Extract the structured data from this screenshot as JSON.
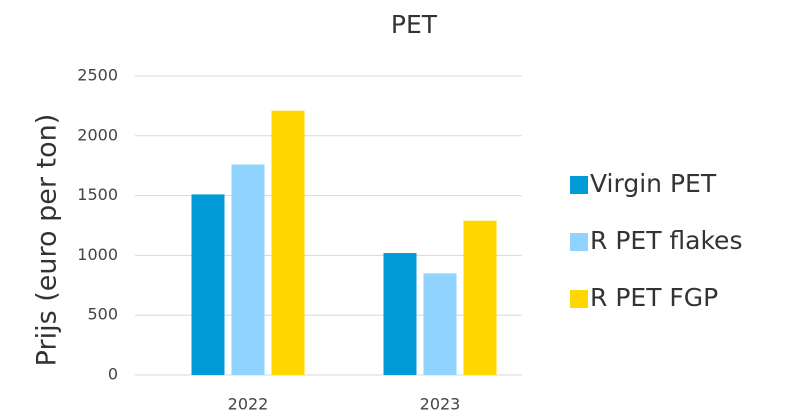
{
  "chart_data": {
    "type": "bar",
    "title": "PET",
    "y_label": "Prijs (euro per ton)",
    "categories": [
      "2022",
      "2023"
    ],
    "series": [
      {
        "name": "Virgin PET",
        "color": "#009bd6",
        "values": [
          1510,
          1020
        ]
      },
      {
        "name": "R PET flakes",
        "color": "#8fd3fe",
        "values": [
          1760,
          850
        ]
      },
      {
        "name": "R PET FGP",
        "color": "#ffd700",
        "values": [
          2210,
          1290
        ]
      }
    ],
    "ylim": [
      0,
      2500
    ],
    "yticks": [
      0,
      500,
      1000,
      1500,
      2000,
      2500
    ],
    "grid": true,
    "legend": "right"
  }
}
